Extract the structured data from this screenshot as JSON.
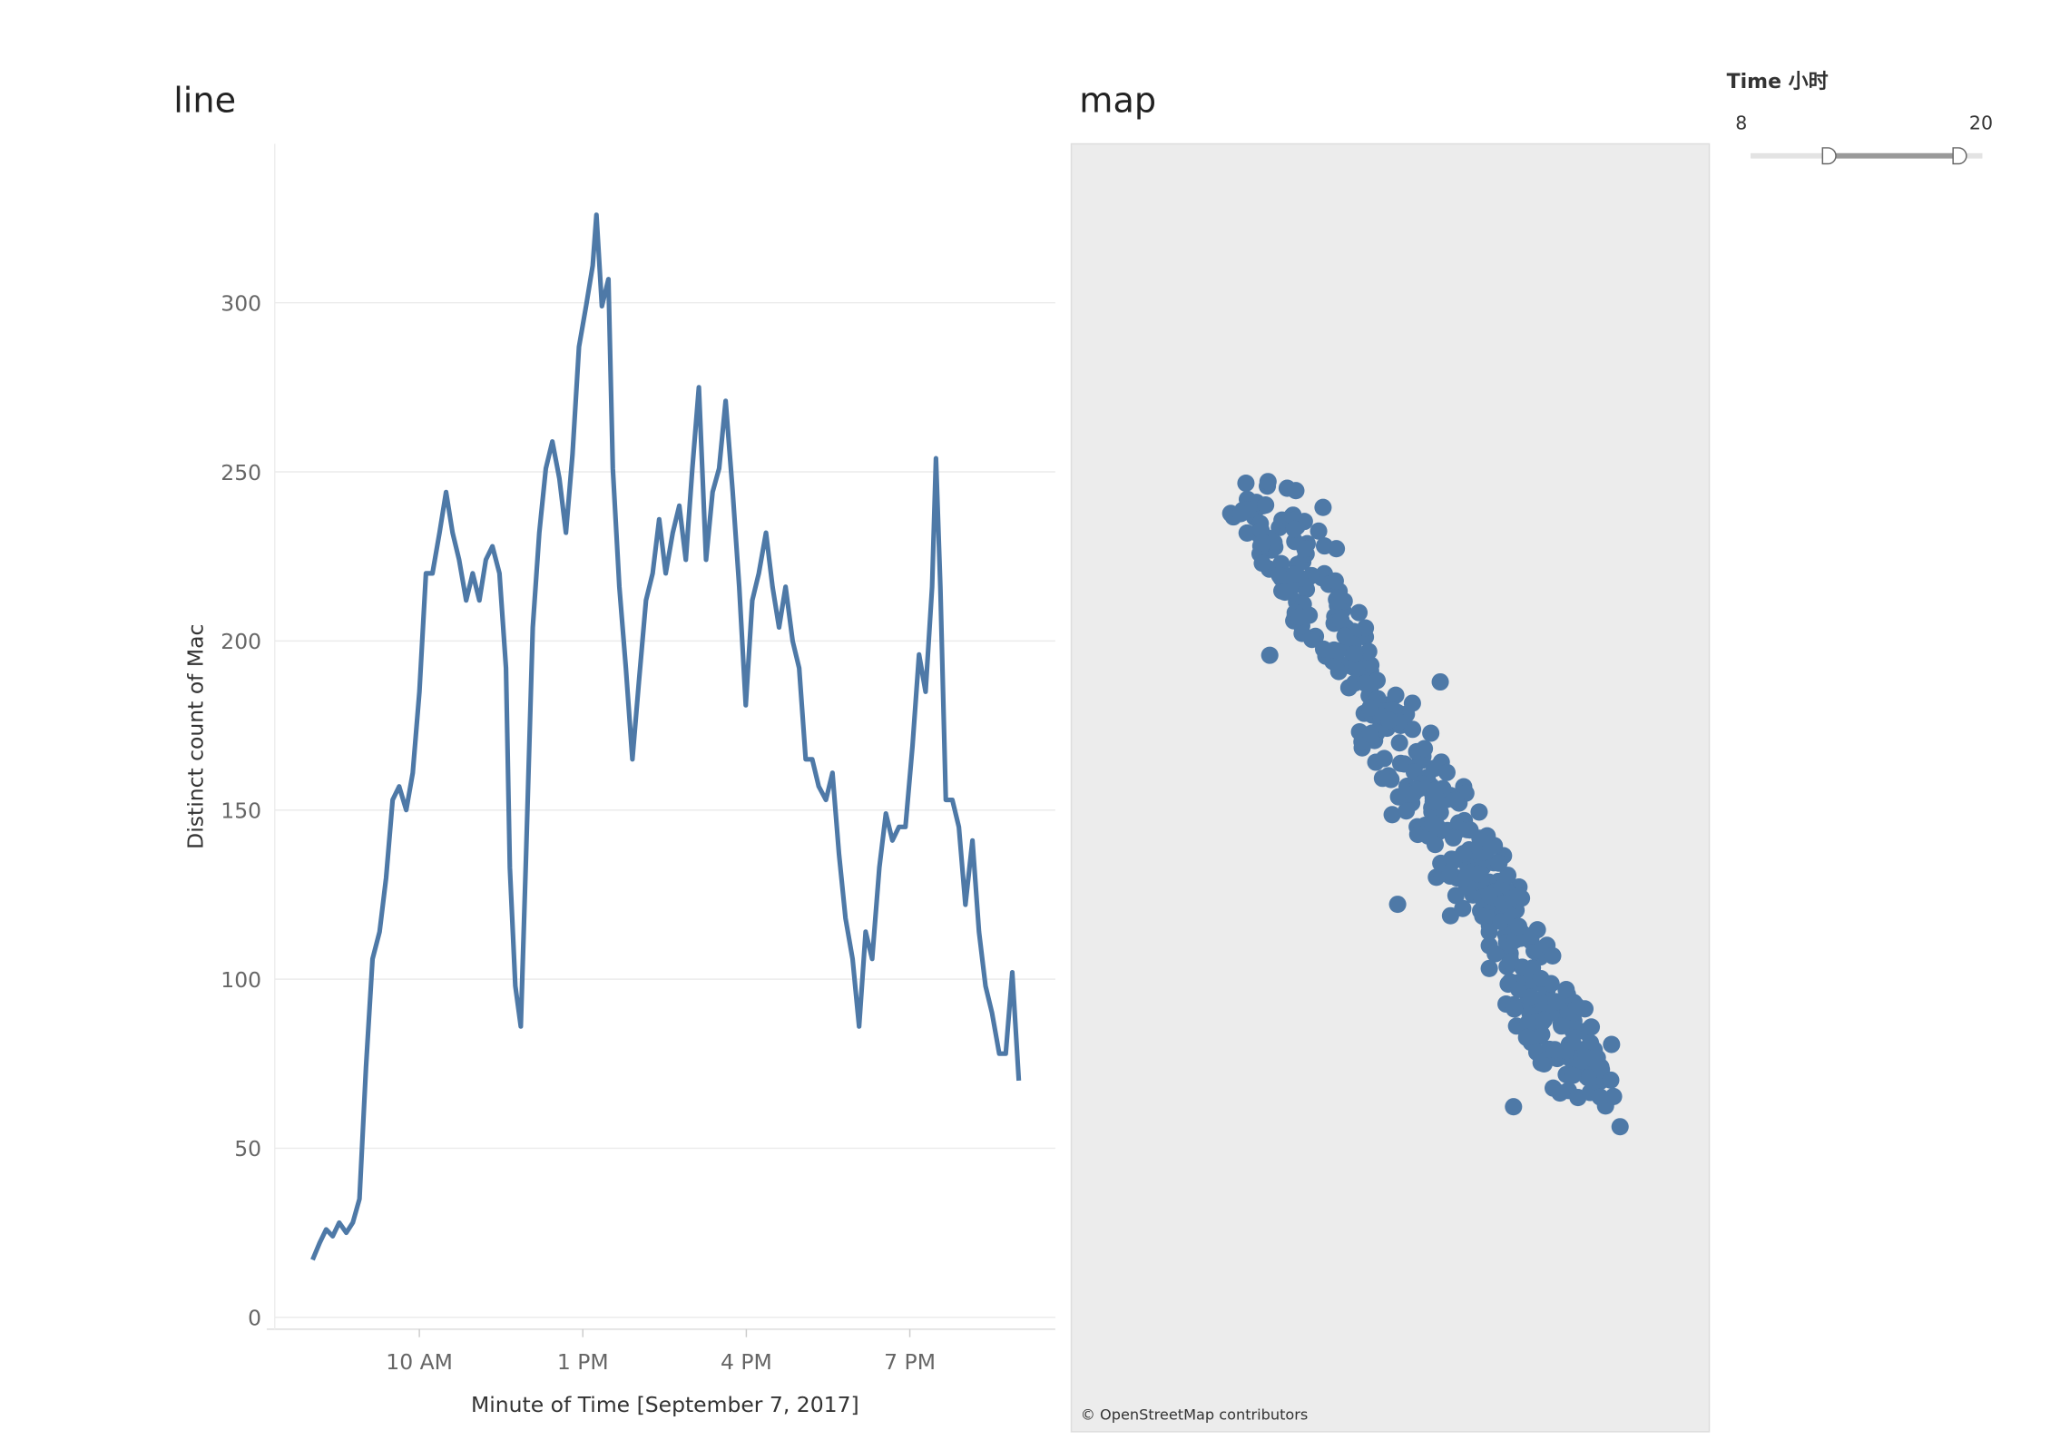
{
  "chart_data": [
    {
      "type": "line",
      "title": "line",
      "x_label": "Minute of Time [September 7, 2017]",
      "y_label": "Distinct count of Mac",
      "xlim": [
        7.2,
        21.67
      ],
      "ylim": [
        -3.5,
        347
      ],
      "xticks": [
        {
          "value": 10,
          "label": "10 AM"
        },
        {
          "value": 13,
          "label": "1 PM"
        },
        {
          "value": 16,
          "label": "4 PM"
        },
        {
          "value": 19,
          "label": "7 PM"
        }
      ],
      "yticks": [
        0,
        50,
        100,
        150,
        200,
        250,
        300
      ],
      "grid": true,
      "series": [
        {
          "name": "Distinct count of Mac",
          "color": "#4e79a7",
          "x": [
            8.04,
            8.17,
            8.29,
            8.41,
            8.53,
            8.66,
            8.78,
            8.9,
            9.02,
            9.14,
            9.27,
            9.39,
            9.51,
            9.63,
            9.76,
            9.88,
            10.0,
            10.12,
            10.24,
            10.37,
            10.49,
            10.61,
            10.73,
            10.86,
            10.98,
            11.1,
            11.22,
            11.34,
            11.47,
            11.59,
            11.66,
            11.76,
            11.86,
            11.96,
            12.08,
            12.2,
            12.32,
            12.44,
            12.57,
            12.69,
            12.81,
            12.93,
            13.06,
            13.18,
            13.25,
            13.35,
            13.47,
            13.55,
            13.67,
            13.79,
            13.91,
            14.03,
            14.16,
            14.28,
            14.4,
            14.52,
            14.65,
            14.77,
            14.89,
            15.01,
            15.13,
            15.26,
            15.38,
            15.5,
            15.62,
            15.75,
            15.87,
            15.99,
            16.11,
            16.23,
            16.36,
            16.48,
            16.6,
            16.72,
            16.85,
            16.97,
            17.09,
            17.21,
            17.33,
            17.46,
            17.58,
            17.7,
            17.82,
            17.95,
            18.07,
            18.19,
            18.31,
            18.44,
            18.56,
            18.68,
            18.8,
            18.92,
            19.05,
            19.17,
            19.29,
            19.41,
            19.48,
            19.56,
            19.66,
            19.78,
            19.9,
            20.02,
            20.15,
            20.27,
            20.39,
            20.51,
            20.64,
            20.76,
            20.88,
            21.0
          ],
          "values": [
            17,
            22,
            26,
            24,
            28,
            25,
            28,
            35,
            74,
            106,
            114,
            130,
            153,
            157,
            150,
            161,
            185,
            220,
            220,
            232,
            244,
            232,
            224,
            212,
            220,
            212,
            224,
            228,
            220,
            192,
            133,
            98,
            86,
            137,
            204,
            232,
            251,
            259,
            248,
            232,
            255,
            287,
            299,
            311,
            326,
            299,
            307,
            251,
            216,
            192,
            165,
            188,
            212,
            220,
            236,
            220,
            232,
            240,
            224,
            251,
            275,
            224,
            244,
            251,
            271,
            244,
            216,
            181,
            212,
            220,
            232,
            216,
            204,
            216,
            200,
            192,
            165,
            165,
            157,
            153,
            161,
            137,
            118,
            106,
            86,
            114,
            106,
            133,
            149,
            141,
            145,
            145,
            169,
            196,
            185,
            216,
            254,
            216,
            153,
            153,
            145,
            122,
            141,
            114,
            98,
            90,
            78,
            78,
            102,
            70
          ]
        }
      ]
    },
    {
      "type": "map",
      "title": "map",
      "attribution": "© OpenStreetMap contributors",
      "color": "#4e79a7"
    }
  ],
  "filter": {
    "title": "Time 小时",
    "min": 8,
    "max": 20
  }
}
